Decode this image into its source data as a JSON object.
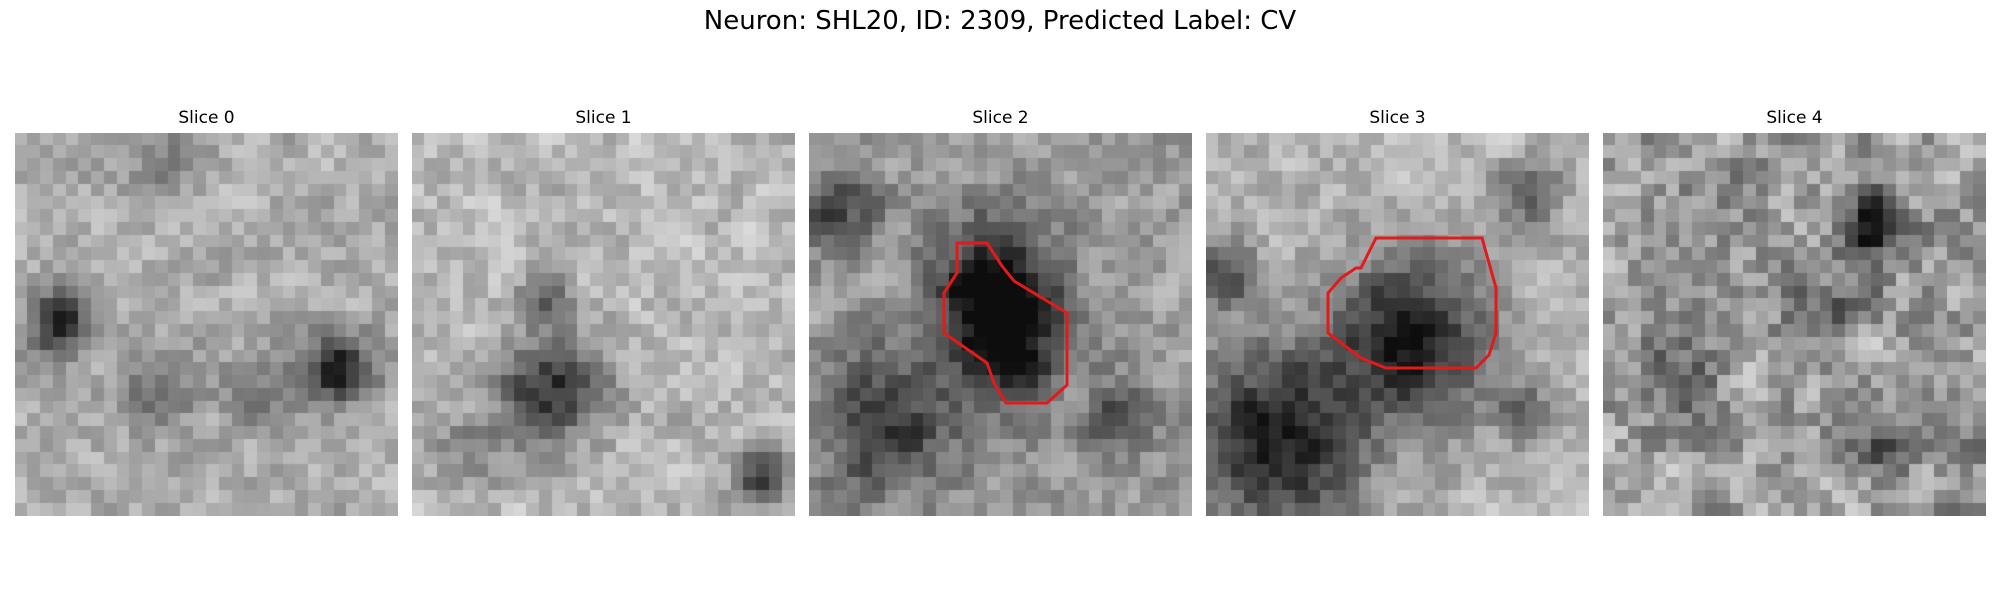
{
  "figure": {
    "title": "Neuron: SHL20, ID: 2309, Predicted Label: CV"
  },
  "style": {
    "contour_color": "#e31a1c"
  },
  "slices": [
    {
      "title": "Slice 0",
      "has_contour": false
    },
    {
      "title": "Slice 1",
      "has_contour": false
    },
    {
      "title": "Slice 2",
      "has_contour": true
    },
    {
      "title": "Slice 3",
      "has_contour": true
    },
    {
      "title": "Slice 4",
      "has_contour": false
    }
  ]
}
